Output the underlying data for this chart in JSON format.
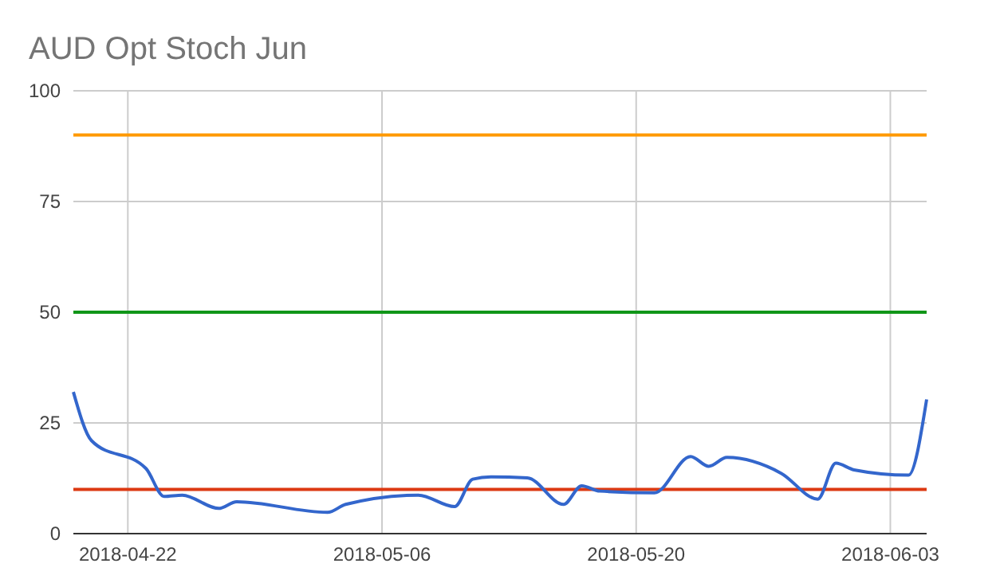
{
  "chart_data": {
    "type": "line",
    "title": "AUD Opt Stoch Jun",
    "x": [
      "2018-04-19",
      "2018-04-20",
      "2018-04-23",
      "2018-04-24",
      "2018-04-25",
      "2018-04-27",
      "2018-04-28",
      "2018-05-03",
      "2018-05-04",
      "2018-05-08",
      "2018-05-10",
      "2018-05-11",
      "2018-05-12",
      "2018-05-14",
      "2018-05-16",
      "2018-05-17",
      "2018-05-18",
      "2018-05-21",
      "2018-05-23",
      "2018-05-24",
      "2018-05-25",
      "2018-05-28",
      "2018-05-30",
      "2018-05-31",
      "2018-06-01",
      "2018-06-04",
      "2018-06-05"
    ],
    "series": [
      {
        "color": "#3366cc",
        "values": [
          32,
          21,
          14.7,
          8.4,
          8.7,
          5.7,
          7.2,
          4.8,
          6.6,
          8.7,
          6.1,
          12.3,
          12.8,
          12.6,
          6.6,
          10.8,
          9.6,
          9.2,
          17.4,
          15.2,
          17.2,
          13.6,
          7.8,
          15.9,
          14.4,
          13.2,
          30.3
        ]
      }
    ],
    "xlim": [
      "2018-04-19",
      "2018-06-05"
    ],
    "xticks": [
      {
        "value": "2018-04-22",
        "label": "2018-04-22"
      },
      {
        "value": "2018-05-06",
        "label": "2018-05-06"
      },
      {
        "value": "2018-05-20",
        "label": "2018-05-20"
      },
      {
        "value": "2018-06-03",
        "label": "2018-06-03"
      }
    ],
    "ylim": [
      0,
      100
    ],
    "yticks": [
      0,
      25,
      50,
      75,
      100
    ],
    "grid": true,
    "ref_lines": [
      {
        "axis": "y",
        "value": 90,
        "color": "#ff9900"
      },
      {
        "axis": "y",
        "value": 50,
        "color": "#109618"
      },
      {
        "axis": "y",
        "value": 10,
        "color": "#dc3912"
      }
    ]
  }
}
